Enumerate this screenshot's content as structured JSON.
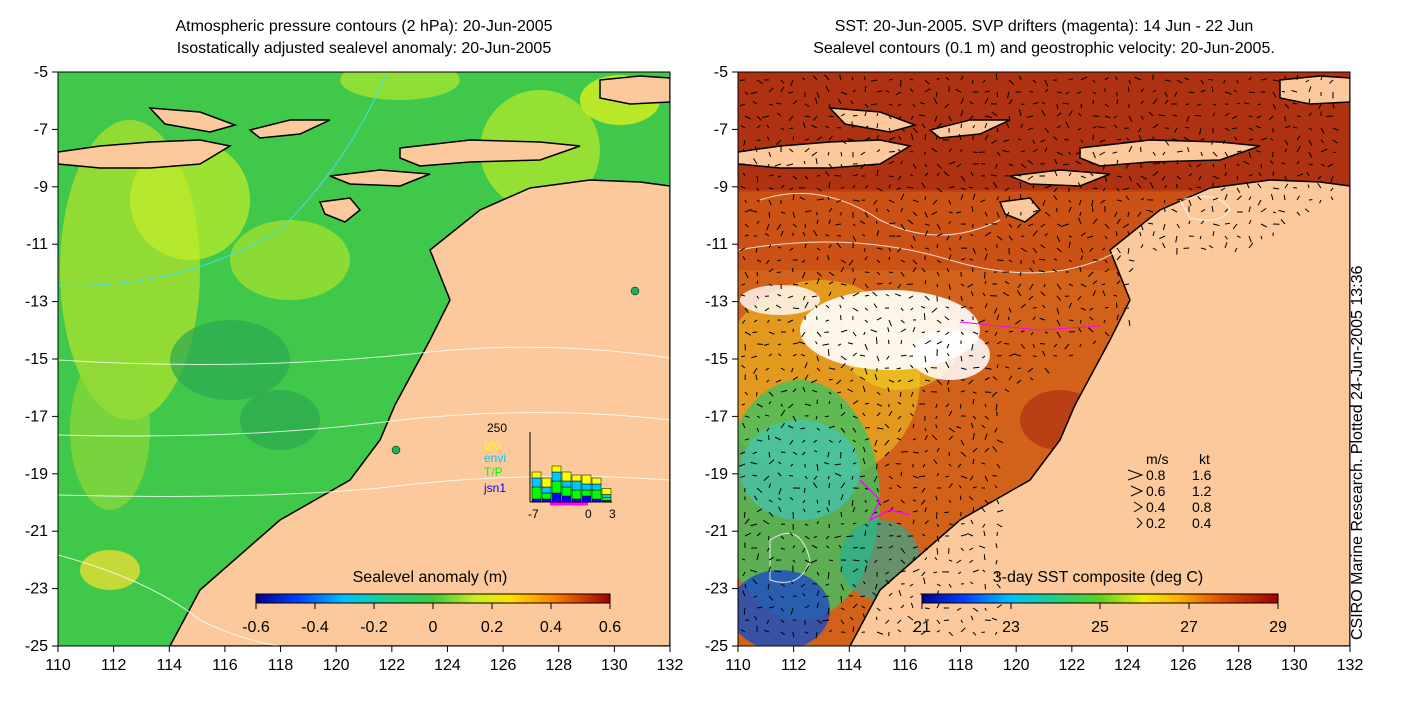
{
  "left_panel": {
    "title_line1": "Atmospheric pressure contours (2 hPa): 20-Jun-2005",
    "title_line2": "Isostatically adjusted sealevel anomaly: 20-Jun-2005",
    "colorbar_label": "Sealevel anomaly (m)",
    "colorbar_ticks": [
      "-0.6",
      "-0.4",
      "-0.2",
      "0",
      "0.2",
      "0.4",
      "0.6"
    ],
    "inset": {
      "ymax_label": "250",
      "legend": [
        {
          "label": "gfo",
          "color": "#ffff00"
        },
        {
          "label": "envi",
          "color": "#00c8ff"
        },
        {
          "label": "T/P",
          "color": "#00ff00"
        },
        {
          "label": "jsn1",
          "color": "#0000ff"
        }
      ],
      "x_ticks": [
        "-7",
        "0",
        "3"
      ]
    }
  },
  "right_panel": {
    "title_line1": "SST: 20-Jun-2005. SVP drifters (magenta): 14 Jun - 22 Jun",
    "title_line2": "Sealevel contours (0.1 m) and geostrophic velocity: 20-Jun-2005.",
    "colorbar_label": "3-day SST composite (deg C)",
    "colorbar_ticks": [
      "21",
      "23",
      "25",
      "27",
      "29"
    ],
    "velocity_legend": {
      "header_ms": "m/s",
      "header_kt": "kt",
      "rows": [
        {
          "ms": "0.8",
          "kt": "1.6"
        },
        {
          "ms": "0.6",
          "kt": "1.2"
        },
        {
          "ms": "0.4",
          "kt": "0.8"
        },
        {
          "ms": "0.2",
          "kt": "0.4"
        }
      ]
    }
  },
  "y_axis_ticks": [
    "-5",
    "-7",
    "-9",
    "-11",
    "-13",
    "-15",
    "-17",
    "-19",
    "-21",
    "-23",
    "-25"
  ],
  "x_axis_ticks": [
    "110",
    "112",
    "114",
    "116",
    "118",
    "120",
    "122",
    "124",
    "126",
    "128",
    "130",
    "132"
  ],
  "credit": "CSIRO Marine Research. Plotted 24-Jun-2005 13:36",
  "colors": {
    "land": "#fbc99b",
    "ocean_left": "#3fc84a",
    "ocean_right": "#d2621a",
    "coastline": "#000000"
  }
}
